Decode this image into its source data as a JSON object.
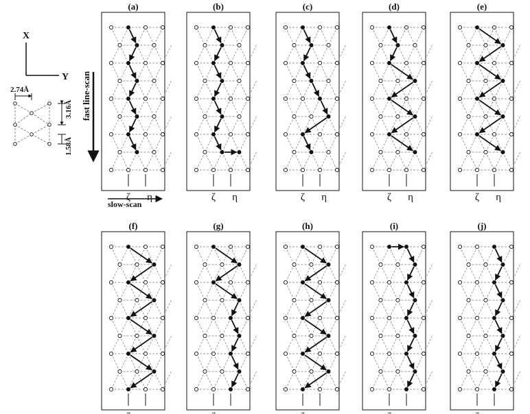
{
  "panels": [
    {
      "label": "(a)",
      "pattern": "a"
    },
    {
      "label": "(b)",
      "pattern": "b"
    },
    {
      "label": "(c)",
      "pattern": "c"
    },
    {
      "label": "(d)",
      "pattern": "d"
    },
    {
      "label": "(e)",
      "pattern": "e"
    },
    {
      "label": "(f)",
      "pattern": "f"
    },
    {
      "label": "(g)",
      "pattern": "g"
    },
    {
      "label": "(h)",
      "pattern": "h"
    },
    {
      "label": "(i)",
      "pattern": "i"
    },
    {
      "label": "(j)",
      "pattern": "j"
    }
  ],
  "column_labels": {
    "zeta": "ζ",
    "eta": "η"
  },
  "axes": {
    "x": "X",
    "y": "Y"
  },
  "fast_scan_label": "fast line-scan",
  "slow_scan_label": "slow-scan",
  "lattice": {
    "spacing_y": "2.74Å",
    "spacing_x": "3.16Å",
    "offset_x": "1.58Å"
  }
}
